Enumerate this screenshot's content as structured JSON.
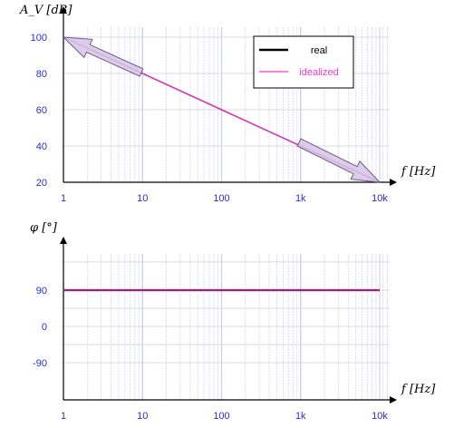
{
  "chart_data": [
    {
      "type": "line",
      "xscale": "log",
      "xlim": [
        1,
        10000
      ],
      "ylim": [
        20,
        110
      ],
      "x_ticks": [
        1,
        10,
        100,
        1000,
        10000
      ],
      "x_tick_labels": [
        "1",
        "10",
        "100",
        "1k",
        "10k"
      ],
      "y_ticks": [
        20,
        40,
        60,
        80,
        100
      ],
      "y_tick_labels": [
        "20",
        "40",
        "60",
        "80",
        "100"
      ],
      "ylabel": "A_V [dB]",
      "xlabel": "f [Hz]",
      "grid": true,
      "legend_position": "top-right",
      "legend": [
        {
          "name": "real",
          "color": "#000000"
        },
        {
          "name": "idealized",
          "color": "#ff33cc"
        }
      ],
      "annotations": [
        {
          "type": "arrow",
          "direction": "pointing to upper-left",
          "target": [
            1,
            100
          ]
        },
        {
          "type": "arrow",
          "direction": "pointing to lower-right",
          "target": [
            10000,
            20
          ]
        }
      ],
      "series": [
        {
          "name": "real",
          "color": "#000000",
          "x": [
            1,
            10000
          ],
          "y": [
            100,
            20
          ]
        },
        {
          "name": "idealized",
          "color": "#ff33cc",
          "x": [
            1,
            10000
          ],
          "y": [
            100,
            20
          ]
        }
      ]
    },
    {
      "type": "line",
      "xscale": "log",
      "xlim": [
        1,
        10000
      ],
      "ylim": [
        -130,
        180
      ],
      "x_ticks": [
        1,
        10,
        100,
        1000,
        10000
      ],
      "x_tick_labels": [
        "1",
        "10",
        "100",
        "1k",
        "10k"
      ],
      "y_ticks": [
        90,
        0,
        -90
      ],
      "y_tick_labels": [
        "90",
        "0",
        "-90"
      ],
      "ylabel": "φ [°]",
      "xlabel": "f [Hz]",
      "grid": true,
      "series": [
        {
          "name": "real",
          "color": "#000000",
          "x": [
            1,
            10000
          ],
          "y": [
            90,
            90
          ]
        },
        {
          "name": "idealized",
          "color": "#ff33cc",
          "x": [
            1,
            10000
          ],
          "y": [
            90,
            90
          ]
        }
      ]
    }
  ]
}
